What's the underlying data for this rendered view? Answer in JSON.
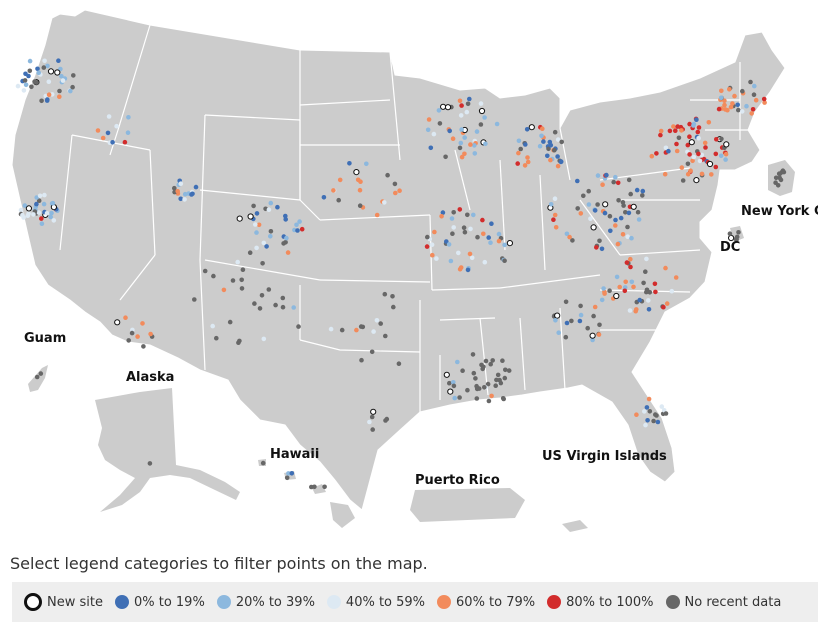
{
  "instructions": "Select legend categories to filter points on the map.",
  "labels": {
    "guam": "Guam",
    "alaska": "Alaska",
    "hawaii": "Hawaii",
    "puerto_rico": "Puerto Rico",
    "usvi": "US Virgin Islands",
    "new_york_city": "New York Ci",
    "dc": "DC"
  },
  "legend": [
    {
      "label": "New site",
      "color": "#ffffff",
      "border": "#111111"
    },
    {
      "label": "0% to 19%",
      "color": "#3f6fb5",
      "border": "#3f6fb5"
    },
    {
      "label": "20% to 39%",
      "color": "#8cb8de",
      "border": "#8cb8de"
    },
    {
      "label": "40% to 59%",
      "color": "#dde9f3",
      "border": "#dde9f3"
    },
    {
      "label": "60% to 79%",
      "color": "#f28b5c",
      "border": "#f28b5c"
    },
    {
      "label": "80% to 100%",
      "color": "#d22c2c",
      "border": "#d22c2c"
    },
    {
      "label": "No recent data",
      "color": "#676767",
      "border": "#676767"
    }
  ],
  "colors": {
    "land": "#cccccc",
    "border": "#ffffff",
    "background": "#ffffff"
  }
}
